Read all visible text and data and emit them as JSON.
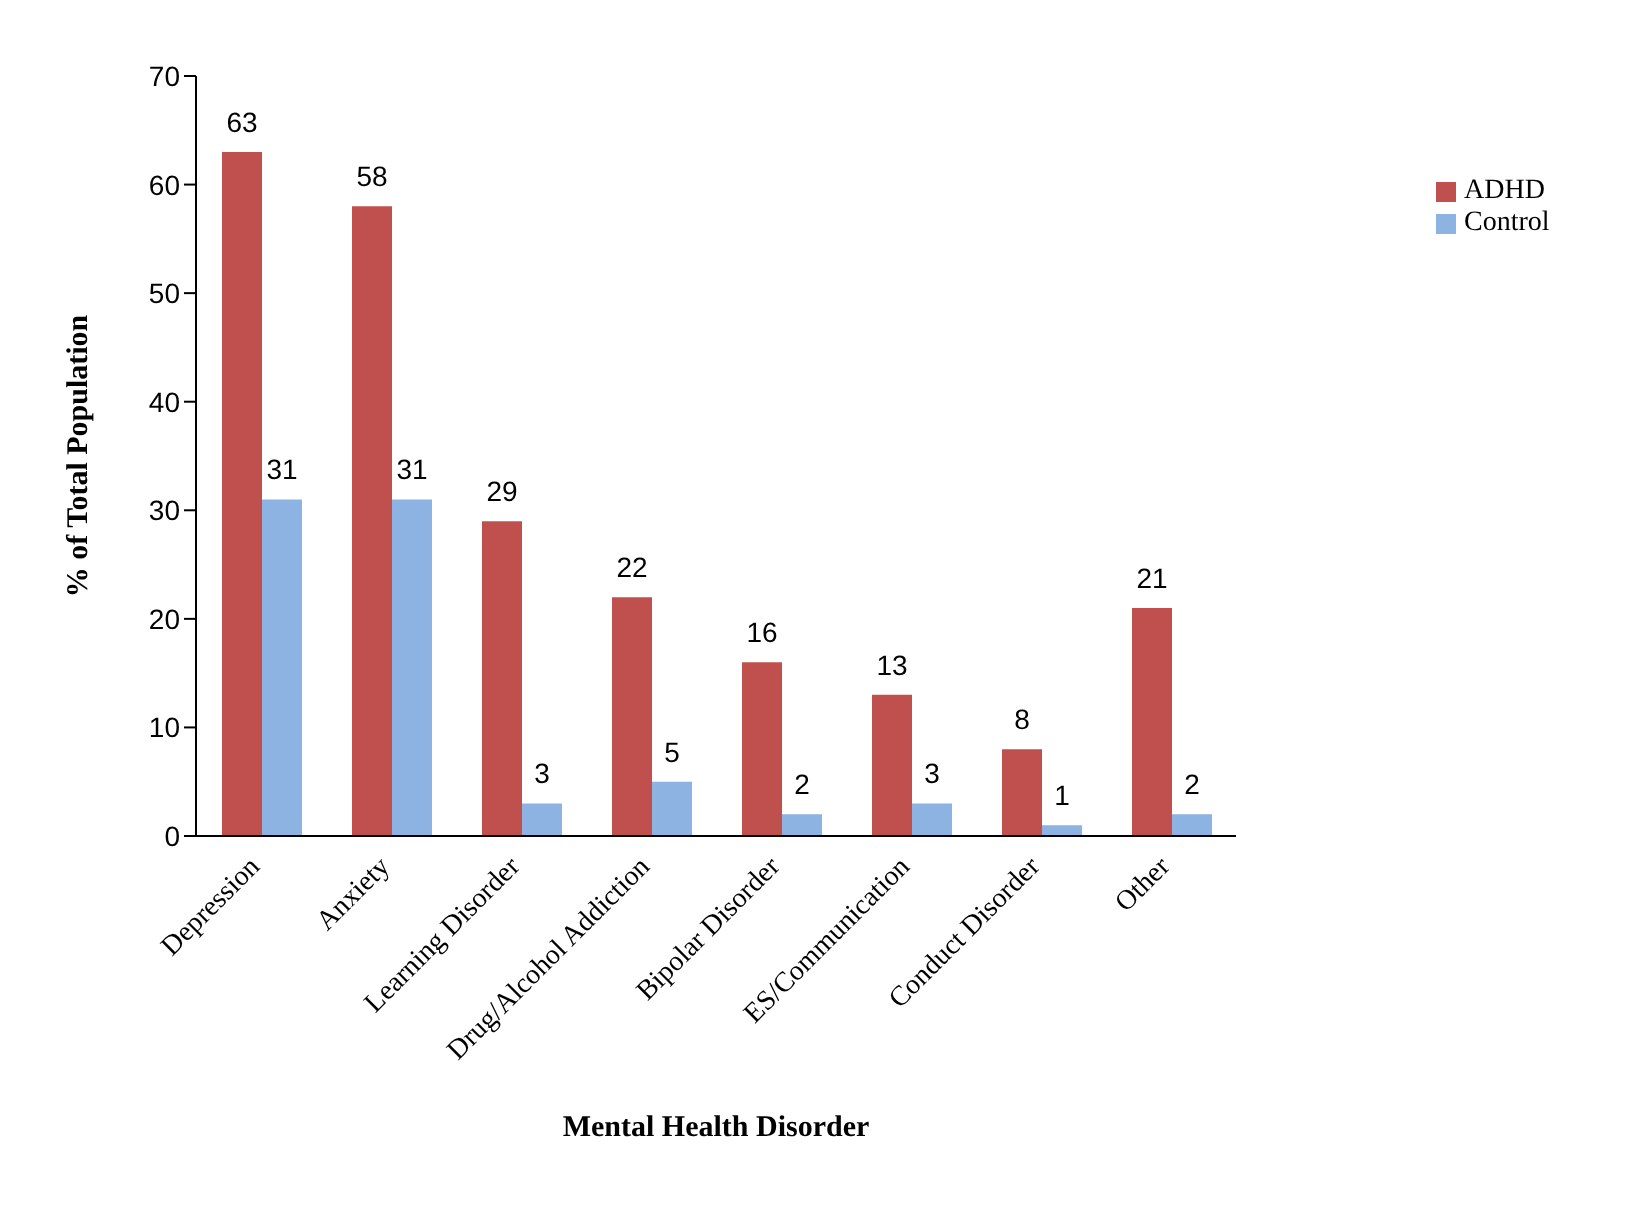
{
  "chart_data": {
    "type": "bar",
    "xlabel": "Mental Health Disorder",
    "ylabel": "% of Total Population",
    "categories": [
      "Depression",
      "Anxiety",
      "Learning Disorder",
      "Drug/Alcohol Addiction",
      "Bipolar Disorder",
      "ES/Communication",
      "Conduct Disorder",
      "Other"
    ],
    "series": [
      {
        "name": "ADHD",
        "color": "#c0504d",
        "values": [
          63,
          58,
          29,
          22,
          16,
          13,
          8,
          21
        ]
      },
      {
        "name": "Control",
        "color": "#8db3e2",
        "values": [
          31,
          31,
          3,
          5,
          2,
          3,
          1,
          2
        ]
      }
    ],
    "ylim": [
      0,
      70
    ],
    "yticks": [
      0,
      10,
      20,
      30,
      40,
      50,
      60,
      70
    ],
    "grid": false,
    "legend": "right",
    "data_labels": true
  }
}
